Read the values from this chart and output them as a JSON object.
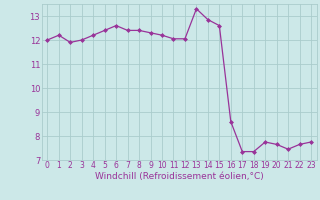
{
  "x": [
    0,
    1,
    2,
    3,
    4,
    5,
    6,
    7,
    8,
    9,
    10,
    11,
    12,
    13,
    14,
    15,
    16,
    17,
    18,
    19,
    20,
    21,
    22,
    23
  ],
  "y": [
    12.0,
    12.2,
    11.9,
    12.0,
    12.2,
    12.4,
    12.6,
    12.4,
    12.4,
    12.3,
    12.2,
    12.05,
    12.05,
    13.3,
    12.85,
    12.6,
    8.6,
    7.35,
    7.35,
    7.75,
    7.65,
    7.45,
    7.65,
    7.75
  ],
  "line_color": "#993399",
  "marker": "D",
  "marker_size": 2.0,
  "bg_color": "#cce8e8",
  "grid_color": "#aacccc",
  "xlabel": "Windchill (Refroidissement éolien,°C)",
  "ylim": [
    7,
    13.5
  ],
  "xlim_min": -0.5,
  "xlim_max": 23.5,
  "yticks": [
    7,
    8,
    9,
    10,
    11,
    12,
    13
  ],
  "xticks": [
    0,
    1,
    2,
    3,
    4,
    5,
    6,
    7,
    8,
    9,
    10,
    11,
    12,
    13,
    14,
    15,
    16,
    17,
    18,
    19,
    20,
    21,
    22,
    23
  ],
  "xtick_labels": [
    "0",
    "1",
    "2",
    "3",
    "4",
    "5",
    "6",
    "7",
    "8",
    "9",
    "10",
    "11",
    "12",
    "13",
    "14",
    "15",
    "16",
    "17",
    "18",
    "19",
    "20",
    "21",
    "22",
    "23"
  ],
  "tick_fontsize": 5.5,
  "ylabel_fontsize": 6.0,
  "xlabel_fontsize": 6.5,
  "tick_color": "#993399",
  "label_color": "#993399",
  "linewidth": 0.9
}
